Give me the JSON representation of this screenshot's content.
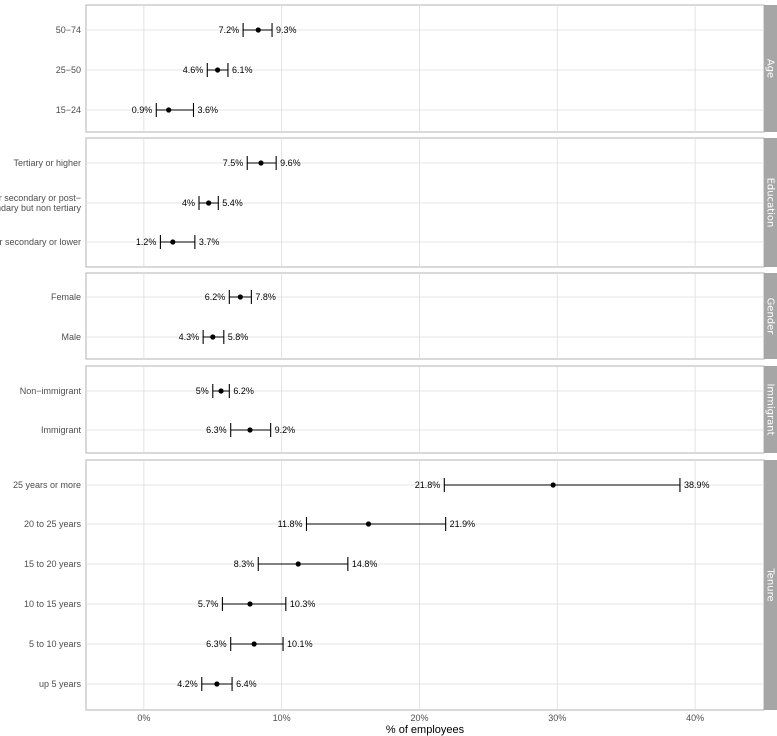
{
  "chart_data": {
    "type": "errorbar",
    "xlabel": "% of employees",
    "xlim": [
      -4.2,
      45
    ],
    "x_ticks": [
      0,
      10,
      20,
      30,
      40
    ],
    "x_tick_labels": [
      "0%",
      "10%",
      "20%",
      "30%",
      "40%"
    ],
    "grid": true,
    "facet_strip_color": "#a6a6a6",
    "facets": [
      {
        "name": "Age",
        "rows": [
          {
            "label": "50−74",
            "low": 7.2,
            "point": 8.3,
            "high": 9.3,
            "low_label": "7.2%",
            "high_label": "9.3%"
          },
          {
            "label": "25−50",
            "low": 4.6,
            "point": 5.35,
            "high": 6.1,
            "low_label": "4.6%",
            "high_label": "6.1%"
          },
          {
            "label": "15−24",
            "low": 0.9,
            "point": 1.8,
            "high": 3.6,
            "low_label": "0.9%",
            "high_label": "3.6%"
          }
        ]
      },
      {
        "name": "Education",
        "rows": [
          {
            "label": "Tertiary or higher",
            "low": 7.5,
            "point": 8.5,
            "high": 9.6,
            "low_label": "7.5%",
            "high_label": "9.6%"
          },
          {
            "label": "Upper secondary or post− secondary but non tertiary",
            "low": 4.0,
            "point": 4.7,
            "high": 5.4,
            "low_label": "4%",
            "high_label": "5.4%"
          },
          {
            "label": "Lower secondary or lower",
            "low": 1.2,
            "point": 2.1,
            "high": 3.7,
            "low_label": "1.2%",
            "high_label": "3.7%"
          }
        ]
      },
      {
        "name": "Gender",
        "rows": [
          {
            "label": "Female",
            "low": 6.2,
            "point": 7.0,
            "high": 7.8,
            "low_label": "6.2%",
            "high_label": "7.8%"
          },
          {
            "label": "Male",
            "low": 4.3,
            "point": 5.0,
            "high": 5.8,
            "low_label": "4.3%",
            "high_label": "5.8%"
          }
        ]
      },
      {
        "name": "Immigrant",
        "rows": [
          {
            "label": "Non−immigrant",
            "low": 5.0,
            "point": 5.6,
            "high": 6.2,
            "low_label": "5%",
            "high_label": "6.2%"
          },
          {
            "label": "Immigrant",
            "low": 6.3,
            "point": 7.7,
            "high": 9.2,
            "low_label": "6.3%",
            "high_label": "9.2%"
          }
        ]
      },
      {
        "name": "Tenure",
        "rows": [
          {
            "label": "25 years or more",
            "low": 21.8,
            "point": 29.7,
            "high": 38.9,
            "low_label": "21.8%",
            "high_label": "38.9%"
          },
          {
            "label": "20 to 25 years",
            "low": 11.8,
            "point": 16.3,
            "high": 21.9,
            "low_label": "11.8%",
            "high_label": "21.9%"
          },
          {
            "label": "15 to 20 years",
            "low": 8.3,
            "point": 11.2,
            "high": 14.8,
            "low_label": "8.3%",
            "high_label": "14.8%"
          },
          {
            "label": "10 to 15 years",
            "low": 5.7,
            "point": 7.7,
            "high": 10.3,
            "low_label": "5.7%",
            "high_label": "10.3%"
          },
          {
            "label": "5 to 10 years",
            "low": 6.3,
            "point": 8.0,
            "high": 10.1,
            "low_label": "6.3%",
            "high_label": "10.1%"
          },
          {
            "label": "up 5 years",
            "low": 4.2,
            "point": 5.3,
            "high": 6.4,
            "low_label": "4.2%",
            "high_label": "6.4%"
          }
        ]
      }
    ]
  }
}
